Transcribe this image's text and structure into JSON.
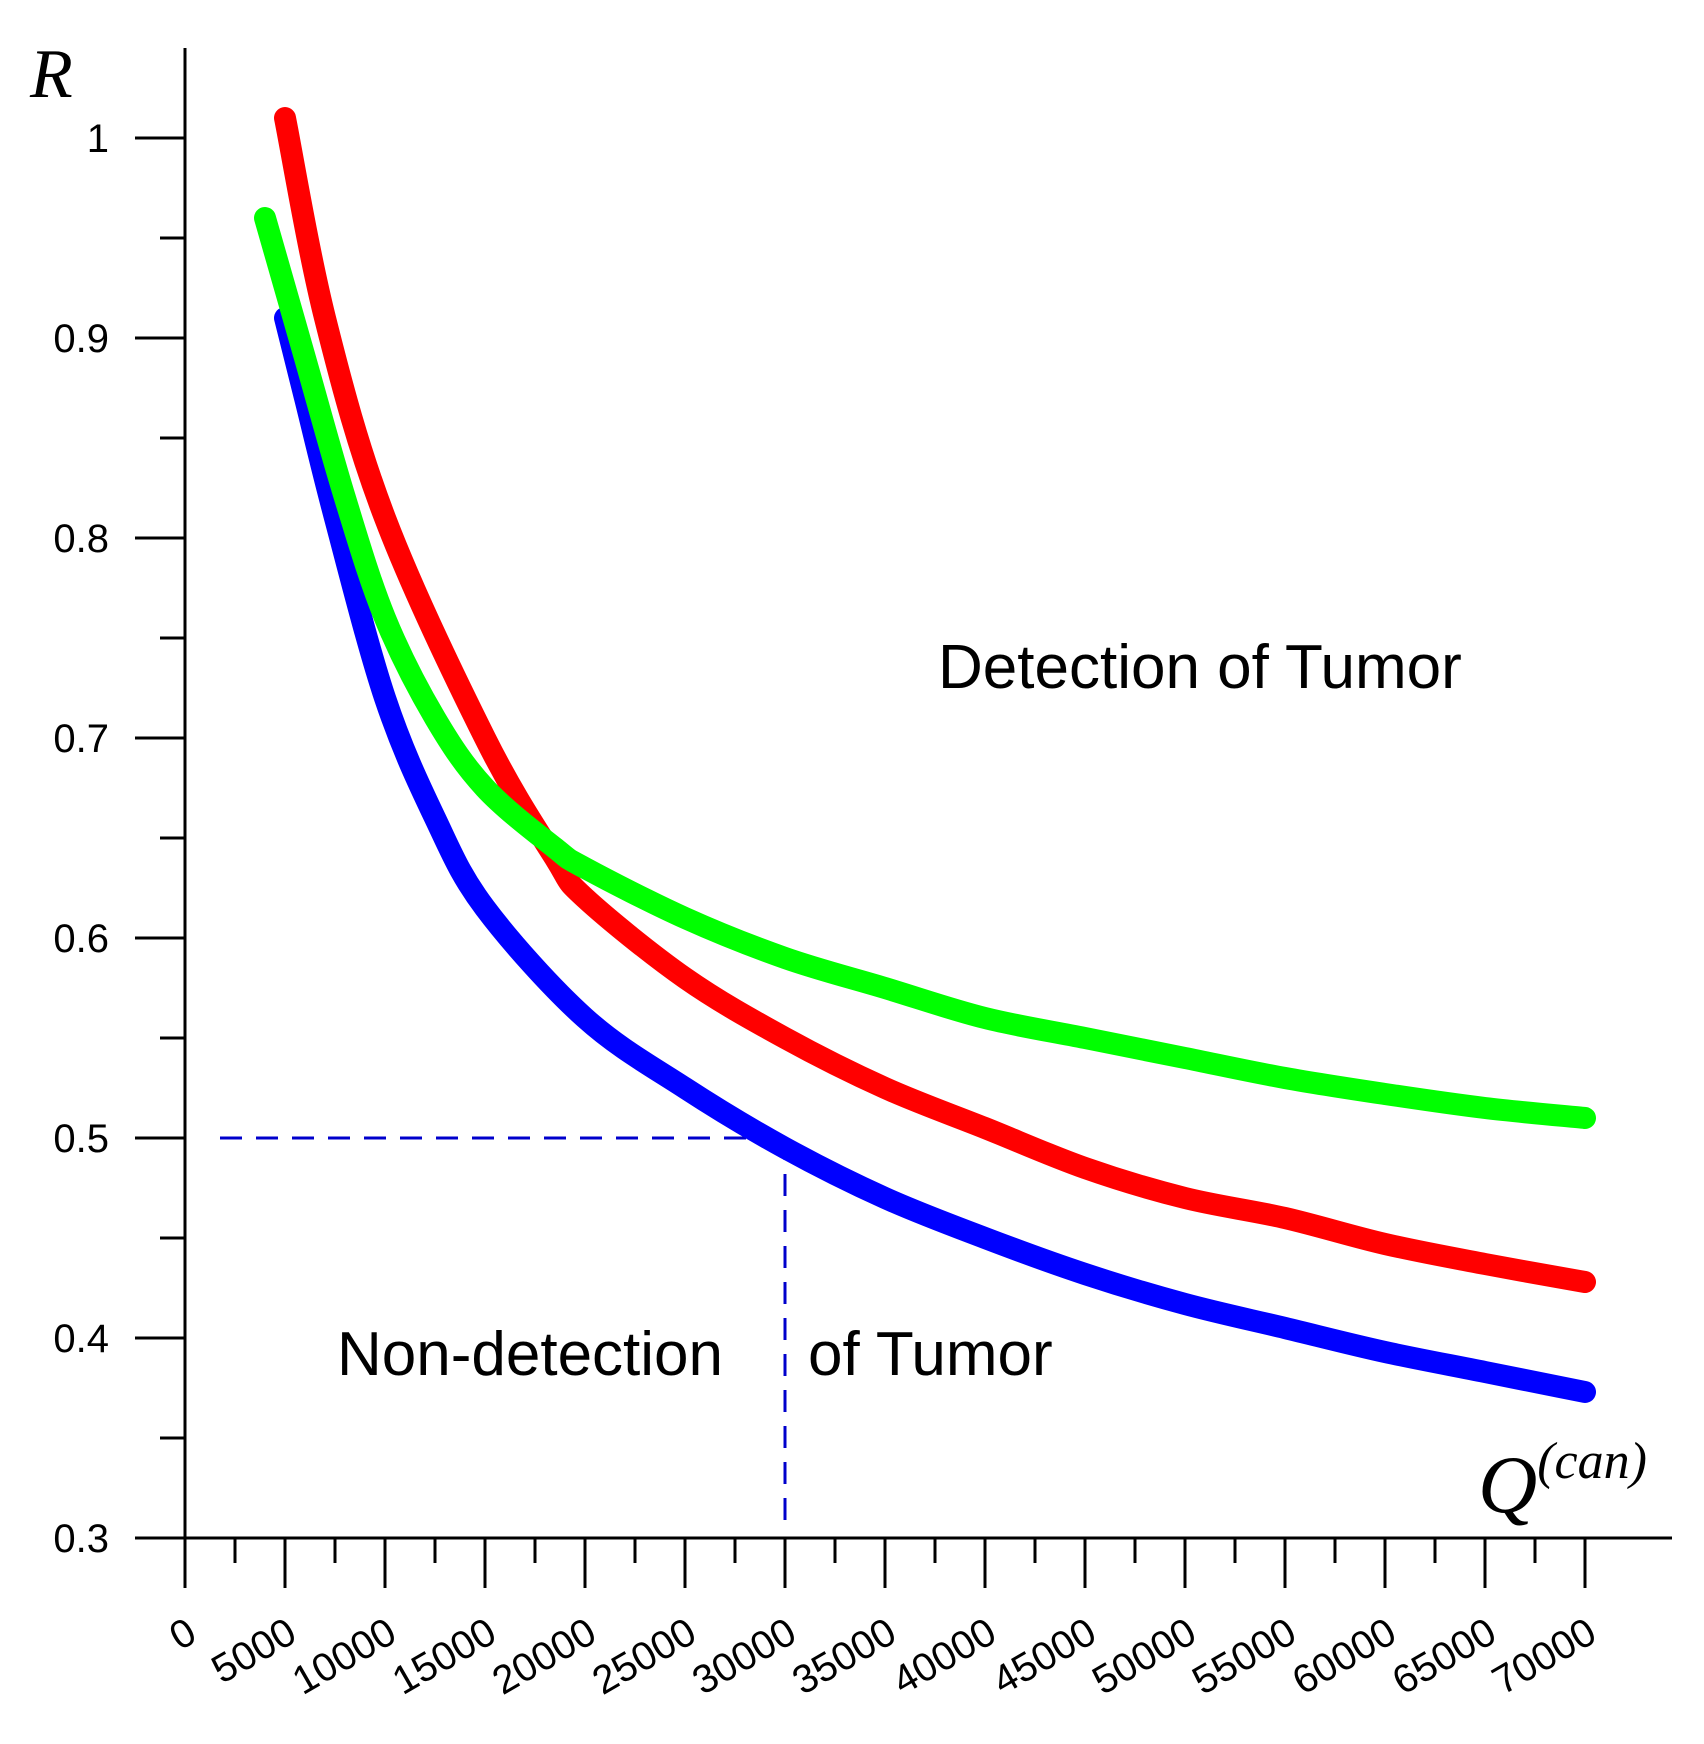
{
  "chart_data": {
    "type": "line",
    "title": "",
    "ylabel": "R",
    "xlabel_main": "Q",
    "xlabel_superscript": "(can)",
    "xlim": [
      0,
      72000
    ],
    "ylim": [
      0.3,
      1.05
    ],
    "x_ticks": [
      0,
      5000,
      10000,
      15000,
      20000,
      25000,
      30000,
      35000,
      40000,
      45000,
      50000,
      55000,
      60000,
      65000,
      70000
    ],
    "x_tick_labels": [
      "0",
      "5000",
      "10000",
      "15000",
      "20000",
      "25000",
      "30000",
      "35000",
      "40000",
      "45000",
      "50000",
      "55000",
      "60000",
      "65000",
      "70000"
    ],
    "y_ticks": [
      0.3,
      0.4,
      0.5,
      0.6,
      0.7,
      0.8,
      0.9,
      1.0
    ],
    "y_tick_labels": [
      "0.3",
      "0.4",
      "0.5",
      "0.6",
      "0.7",
      "0.8",
      "0.9",
      "1"
    ],
    "annotations": {
      "upper_region": "Detection of Tumor",
      "lower_region_part1": "Non-detection",
      "lower_region_part2": "of  Tumor"
    },
    "threshold": {
      "x": 30000,
      "y": 0.5,
      "color": "#0000cc"
    },
    "series": [
      {
        "name": "red",
        "color": "#ff0000",
        "x": [
          5000,
          7000,
          10000,
          15000,
          18500,
          20000,
          25000,
          30000,
          35000,
          40000,
          45000,
          50000,
          55000,
          60000,
          65000,
          70000
        ],
        "y": [
          1.01,
          0.91,
          0.81,
          0.7,
          0.64,
          0.62,
          0.58,
          0.55,
          0.525,
          0.505,
          0.485,
          0.47,
          0.46,
          0.447,
          0.437,
          0.428
        ]
      },
      {
        "name": "green",
        "color": "#00ff00",
        "x": [
          4000,
          6000,
          8000,
          10000,
          12500,
          15000,
          18500,
          20000,
          25000,
          30000,
          35000,
          40000,
          45000,
          50000,
          55000,
          60000,
          65000,
          70000
        ],
        "y": [
          0.96,
          0.89,
          0.82,
          0.76,
          0.71,
          0.675,
          0.645,
          0.635,
          0.61,
          0.59,
          0.575,
          0.56,
          0.55,
          0.54,
          0.53,
          0.522,
          0.515,
          0.51
        ]
      },
      {
        "name": "blue",
        "color": "#0000ff",
        "x": [
          5000,
          6000,
          7500,
          10000,
          12500,
          15000,
          20000,
          25000,
          30000,
          35000,
          40000,
          45000,
          50000,
          55000,
          60000,
          65000,
          70000
        ],
        "y": [
          0.91,
          0.87,
          0.81,
          0.72,
          0.66,
          0.615,
          0.56,
          0.525,
          0.495,
          0.47,
          0.45,
          0.432,
          0.417,
          0.405,
          0.393,
          0.383,
          0.373
        ]
      }
    ]
  }
}
